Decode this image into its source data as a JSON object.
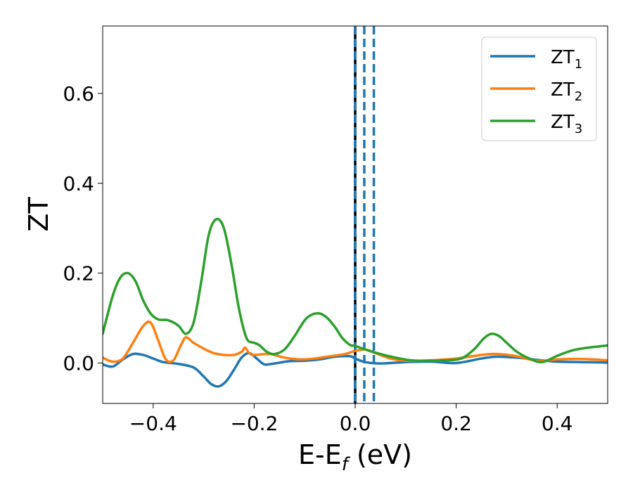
{
  "chart_data": {
    "type": "line",
    "title": "",
    "xlabel_main": "E-E",
    "xlabel_sub": "f",
    "xlabel_tail": " (eV)",
    "ylabel": "ZT",
    "xlim": [
      -0.5,
      0.5
    ],
    "ylim": [
      -0.09,
      0.75
    ],
    "xticks": [
      -0.4,
      -0.2,
      0.0,
      0.2,
      0.4
    ],
    "xtick_labels": [
      "−0.4",
      "−0.2",
      "0.0",
      "0.2",
      "0.4"
    ],
    "yticks": [
      0.0,
      0.2,
      0.4,
      0.6
    ],
    "ytick_labels": [
      "0.0",
      "0.2",
      "0.4",
      "0.6"
    ],
    "grid": false,
    "legend_placement": "top-right",
    "series": [
      {
        "name": "ZT",
        "name_sub": "1",
        "color": "#1f77b4",
        "x": [
          -0.5,
          -0.48,
          -0.46,
          -0.44,
          -0.42,
          -0.4,
          -0.38,
          -0.35,
          -0.32,
          -0.3,
          -0.285,
          -0.27,
          -0.255,
          -0.24,
          -0.225,
          -0.21,
          -0.195,
          -0.18,
          -0.16,
          -0.13,
          -0.1,
          -0.07,
          -0.04,
          -0.01,
          0.0,
          0.02,
          0.05,
          0.1,
          0.15,
          0.2,
          0.25,
          0.28,
          0.32,
          0.36,
          0.4,
          0.45,
          0.5
        ],
        "y": [
          -0.003,
          -0.008,
          0.008,
          0.02,
          0.018,
          0.01,
          0.002,
          -0.002,
          -0.01,
          -0.03,
          -0.047,
          -0.052,
          -0.04,
          -0.015,
          0.012,
          0.022,
          0.01,
          -0.003,
          -0.001,
          0.004,
          0.005,
          0.008,
          0.014,
          0.015,
          0.01,
          0.002,
          -0.001,
          0.002,
          0.003,
          0.0,
          0.01,
          0.014,
          0.012,
          0.007,
          0.003,
          0.002,
          0.001
        ]
      },
      {
        "name": "ZT",
        "name_sub": "2",
        "color": "#ff7f0e",
        "x": [
          -0.5,
          -0.48,
          -0.46,
          -0.44,
          -0.42,
          -0.405,
          -0.39,
          -0.375,
          -0.36,
          -0.345,
          -0.335,
          -0.32,
          -0.3,
          -0.28,
          -0.26,
          -0.24,
          -0.225,
          -0.218,
          -0.21,
          -0.2,
          -0.17,
          -0.14,
          -0.11,
          -0.08,
          -0.05,
          -0.02,
          0.0,
          0.02,
          0.04,
          0.07,
          0.1,
          0.15,
          0.2,
          0.25,
          0.28,
          0.32,
          0.36,
          0.4,
          0.45,
          0.5
        ],
        "y": [
          0.012,
          0.003,
          0.01,
          0.045,
          0.082,
          0.09,
          0.05,
          0.008,
          0.006,
          0.04,
          0.057,
          0.045,
          0.032,
          0.022,
          0.018,
          0.018,
          0.025,
          0.034,
          0.022,
          0.018,
          0.02,
          0.012,
          0.008,
          0.01,
          0.015,
          0.02,
          0.027,
          0.03,
          0.022,
          0.01,
          0.005,
          0.006,
          0.01,
          0.018,
          0.02,
          0.015,
          0.005,
          0.008,
          0.009,
          0.006
        ]
      },
      {
        "name": "ZT",
        "name_sub": "3",
        "color": "#2ca02c",
        "x": [
          -0.5,
          -0.48,
          -0.465,
          -0.45,
          -0.435,
          -0.42,
          -0.405,
          -0.39,
          -0.37,
          -0.35,
          -0.335,
          -0.32,
          -0.305,
          -0.29,
          -0.275,
          -0.26,
          -0.245,
          -0.23,
          -0.215,
          -0.2,
          -0.19,
          -0.175,
          -0.16,
          -0.14,
          -0.12,
          -0.1,
          -0.085,
          -0.07,
          -0.055,
          -0.04,
          -0.025,
          -0.01,
          0.0,
          0.02,
          0.05,
          0.08,
          0.11,
          0.14,
          0.18,
          0.21,
          0.235,
          0.255,
          0.27,
          0.285,
          0.3,
          0.32,
          0.345,
          0.37,
          0.4,
          0.43,
          0.46,
          0.5
        ],
        "y": [
          0.065,
          0.15,
          0.19,
          0.2,
          0.182,
          0.14,
          0.11,
          0.097,
          0.095,
          0.083,
          0.065,
          0.09,
          0.18,
          0.285,
          0.32,
          0.3,
          0.22,
          0.12,
          0.055,
          0.045,
          0.04,
          0.025,
          0.02,
          0.03,
          0.06,
          0.095,
          0.108,
          0.11,
          0.1,
          0.08,
          0.055,
          0.04,
          0.038,
          0.03,
          0.02,
          0.012,
          0.006,
          0.005,
          0.006,
          0.01,
          0.03,
          0.055,
          0.065,
          0.06,
          0.045,
          0.025,
          0.01,
          0.002,
          0.016,
          0.028,
          0.034,
          0.039
        ]
      }
    ],
    "reference_lines": [
      {
        "x": 0.0,
        "color": "#000000",
        "style": "solid"
      },
      {
        "x": 0.0,
        "color": "#1f77b4",
        "style": "dashed"
      },
      {
        "x": 0.018,
        "color": "#1f77b4",
        "style": "dashed"
      },
      {
        "x": 0.037,
        "color": "#1f77b4",
        "style": "dashed"
      }
    ]
  }
}
